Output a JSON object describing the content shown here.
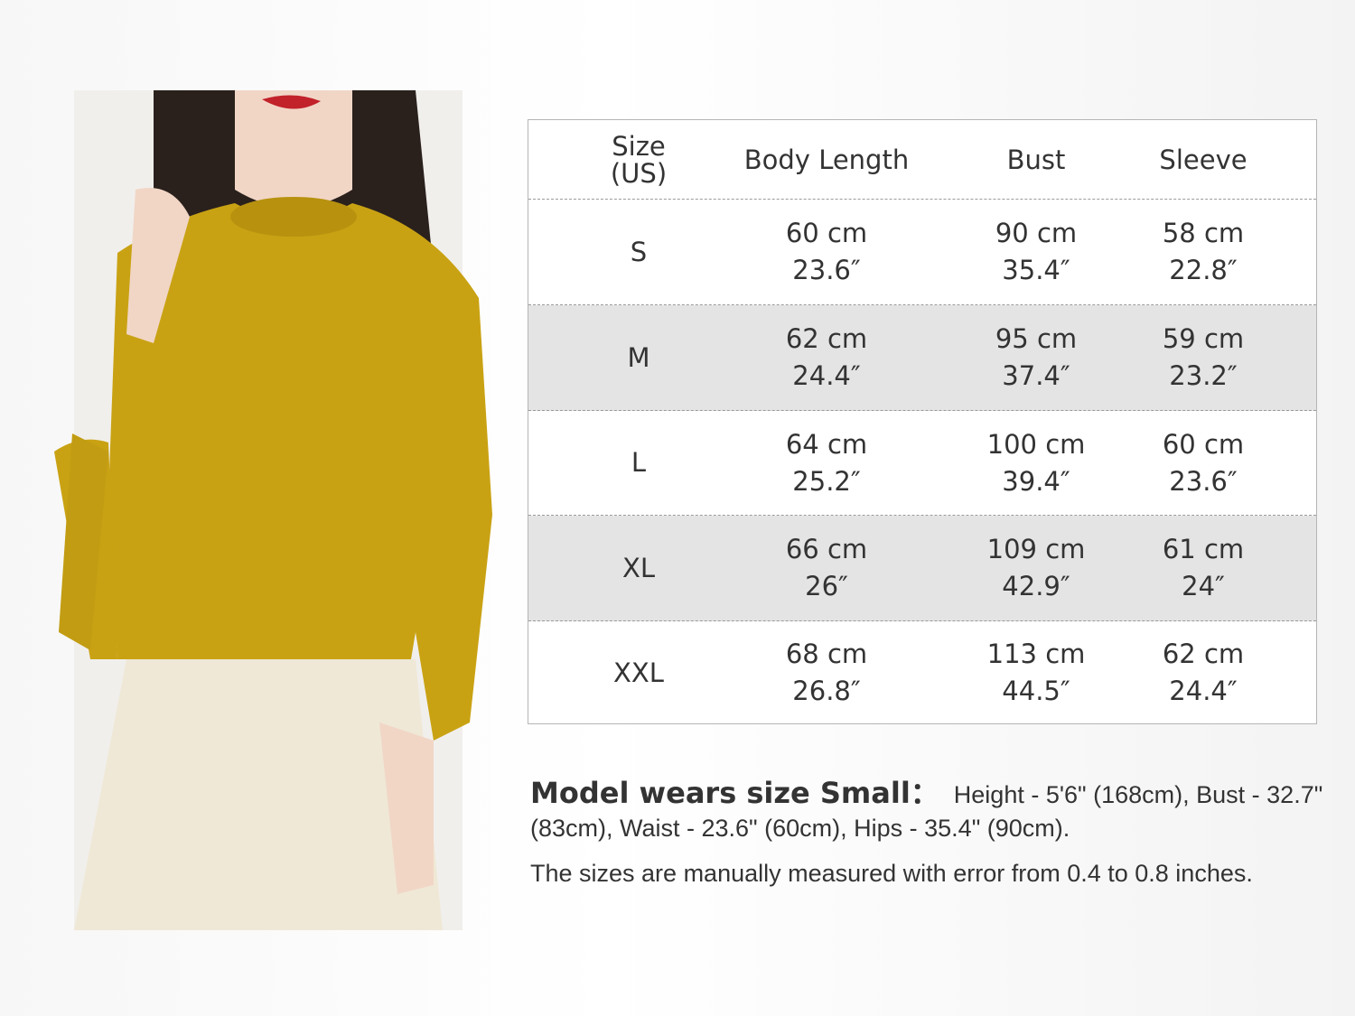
{
  "table": {
    "headers": [
      "Size\n(US)",
      "Body Length",
      "Bust",
      "Sleeve"
    ],
    "header_size_line1": "Size",
    "header_size_line2": "(US)",
    "rows": [
      {
        "size": "S",
        "length_cm": "60 cm",
        "length_in": "23.6″",
        "bust_cm": "90 cm",
        "bust_in": "35.4″",
        "sleeve_cm": "58 cm",
        "sleeve_in": "22.8″"
      },
      {
        "size": "M",
        "length_cm": "62 cm",
        "length_in": "24.4″",
        "bust_cm": "95 cm",
        "bust_in": "37.4″",
        "sleeve_cm": "59 cm",
        "sleeve_in": "23.2″"
      },
      {
        "size": "L",
        "length_cm": "64 cm",
        "length_in": "25.2″",
        "bust_cm": "100 cm",
        "bust_in": "39.4″",
        "sleeve_cm": "60 cm",
        "sleeve_in": "23.6″"
      },
      {
        "size": "XL",
        "length_cm": "66 cm",
        "length_in": "26″",
        "bust_cm": "109 cm",
        "bust_in": "42.9″",
        "sleeve_cm": "61 cm",
        "sleeve_in": "24″"
      },
      {
        "size": "XXL",
        "length_cm": "68 cm",
        "length_in": "26.8″",
        "bust_cm": "113 cm",
        "bust_in": "44.5″",
        "sleeve_cm": "62 cm",
        "sleeve_in": "24.4″"
      }
    ]
  },
  "notes": {
    "model_label": "Model wears size Small：",
    "model_details": "Height - 5'6\" (168cm), Bust - 32.7\" (83cm),  Waist - 23.6\" (60cm),  Hips - 35.4\" (90cm).",
    "disclaimer": "The sizes are manually measured with error from 0.4 to 0.8 inches."
  },
  "colors": {
    "sweater": "#c9a213",
    "row_shade": "#e4e4e4",
    "text": "#333333"
  }
}
